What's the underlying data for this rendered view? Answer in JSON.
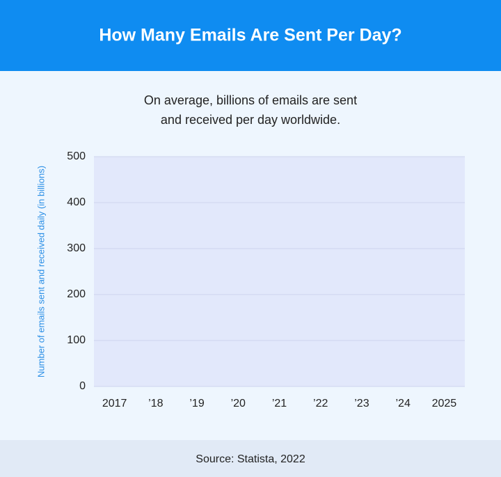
{
  "header": {
    "title": "How Many Emails Are Sent Per Day?"
  },
  "chart_data": {
    "type": "bar",
    "subtitle": [
      "On average, billions of emails are sent",
      "and received per day worldwide."
    ],
    "y_label": "Number of emails sent and received daily (in billions)",
    "categories": [
      "2017",
      "’18",
      "’19",
      "’20",
      "’21",
      "’22",
      "’23",
      "’24",
      "2025"
    ],
    "ylim": [
      0,
      500
    ],
    "yticks": [
      0,
      100,
      200,
      300,
      400,
      500
    ],
    "grid": true,
    "plot_color": "#e2e8fb"
  },
  "footer": {
    "source": "Source: Statista, 2022"
  }
}
